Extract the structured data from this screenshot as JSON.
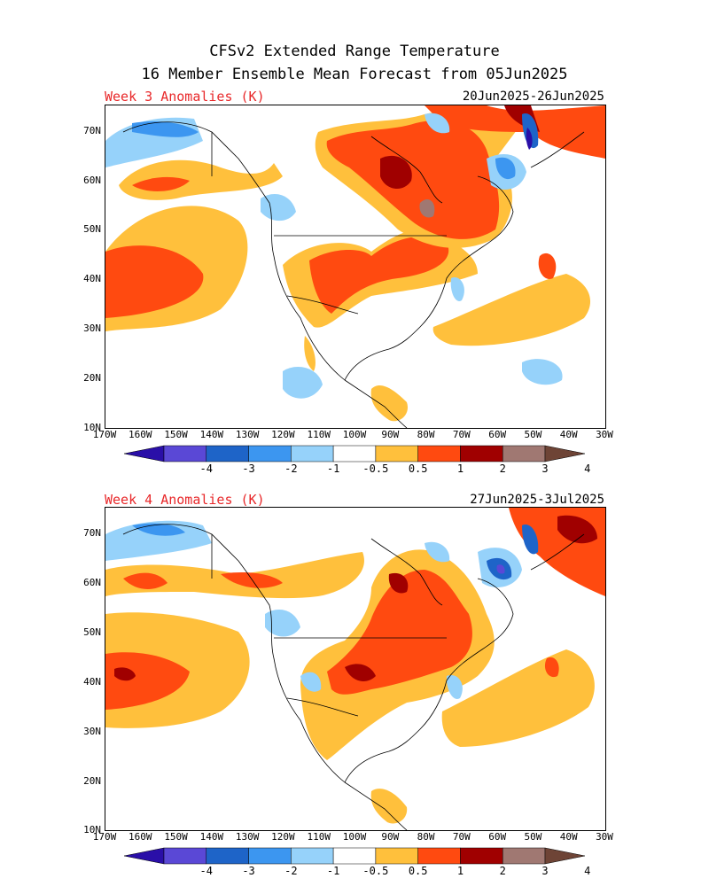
{
  "title_line1": "CFSv2 Extended Range Temperature",
  "title_line2": "16 Member Ensemble Mean Forecast from 05Jun2025",
  "panels": [
    {
      "label": "Week 3 Anomalies (K)",
      "dates": "20Jun2025-26Jun2025"
    },
    {
      "label": "Week 4 Anomalies (K)",
      "dates": "27Jun2025-3Jul2025"
    }
  ],
  "lat_labels": [
    "70N",
    "60N",
    "50N",
    "40N",
    "30N",
    "20N",
    "10N"
  ],
  "lon_labels": [
    "170W",
    "160W",
    "150W",
    "140W",
    "130W",
    "120W",
    "110W",
    "100W",
    "90W",
    "80W",
    "70W",
    "60W",
    "50W",
    "40W",
    "30W"
  ],
  "colorbar": {
    "labels": [
      "-4",
      "-3",
      "-2",
      "-1",
      "-0.5",
      "0.5",
      "1",
      "2",
      "3",
      "4"
    ],
    "colors": [
      "#2a0fa8",
      "#5a48d6",
      "#1e64c8",
      "#3c96f0",
      "#96d2fa",
      "#ffffff",
      "#ffc03c",
      "#ff4a10",
      "#a00000",
      "#a07872",
      "#6e4436"
    ]
  }
}
